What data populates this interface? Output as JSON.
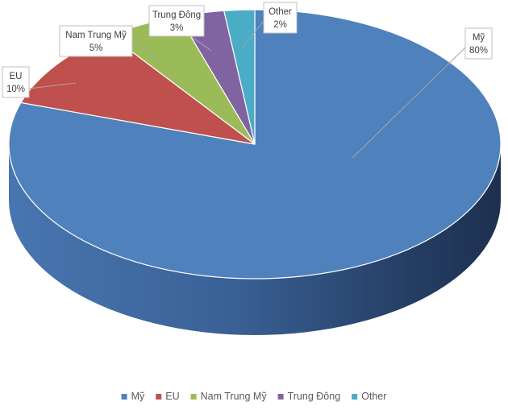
{
  "chart_data": {
    "type": "pie",
    "style": "3d",
    "categories": [
      "Mỹ",
      "EU",
      "Nam Trung Mỹ",
      "Trung Đông",
      "Other"
    ],
    "values": [
      80,
      10,
      5,
      3,
      2
    ],
    "labels": [
      "80%",
      "10%",
      "5%",
      "3%",
      "2%"
    ],
    "colors": [
      "#4f81bd",
      "#c0504d",
      "#9bbb59",
      "#8064a2",
      "#4bacc6"
    ],
    "legend_position": "bottom"
  }
}
